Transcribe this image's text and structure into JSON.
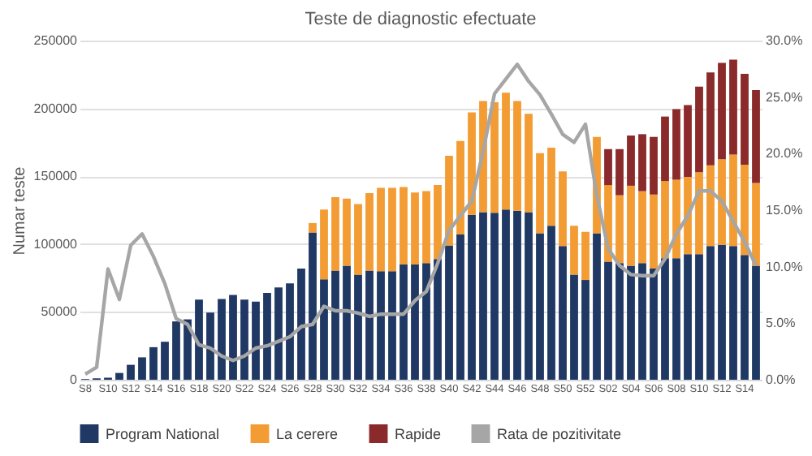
{
  "chart_data": {
    "type": "bar",
    "title": "Teste de diagnostic efectuate",
    "ylabel": "Numar teste",
    "categories": [
      "S8",
      null,
      "S10",
      null,
      "S12",
      null,
      "S14",
      null,
      "S16",
      null,
      "S18",
      null,
      "S20",
      null,
      "S22",
      null,
      "S24",
      null,
      "S26",
      null,
      "S28",
      null,
      "S30",
      null,
      "S32",
      null,
      "S34",
      null,
      "S36",
      null,
      "S38",
      null,
      "S40",
      null,
      "S42",
      null,
      "S44",
      null,
      "S46",
      null,
      "S48",
      null,
      "S50",
      null,
      "S52",
      null,
      "S02",
      null,
      "S04",
      null,
      "S06",
      null,
      "S08",
      null,
      "S10",
      null,
      "S12",
      null,
      "S14",
      null
    ],
    "stacked": true,
    "series": [
      {
        "name": "Program National",
        "color": "#203864",
        "values": [
          500,
          1000,
          1500,
          5000,
          11000,
          16500,
          24000,
          28000,
          43000,
          44500,
          59000,
          49500,
          59500,
          62500,
          59000,
          57500,
          64000,
          68000,
          71000,
          82000,
          108500,
          74000,
          80500,
          84000,
          77500,
          80500,
          80000,
          80000,
          85000,
          85000,
          86000,
          89000,
          99000,
          107000,
          121500,
          123500,
          123000,
          125500,
          124500,
          123500,
          108000,
          113500,
          98500,
          77500,
          73500,
          108000,
          87000,
          86000,
          84000,
          86000,
          82000,
          89500,
          89500,
          92500,
          92500,
          98500,
          99500,
          98500,
          92000,
          84000
        ]
      },
      {
        "name": "La cerere",
        "color": "#f39c33",
        "values": [
          null,
          null,
          null,
          null,
          null,
          null,
          null,
          null,
          null,
          null,
          null,
          null,
          null,
          null,
          null,
          null,
          null,
          null,
          null,
          null,
          7000,
          51500,
          54000,
          49500,
          52000,
          57000,
          61500,
          61500,
          57000,
          53000,
          53000,
          54500,
          66000,
          69000,
          75500,
          82000,
          81500,
          86000,
          81000,
          72500,
          59000,
          57500,
          55000,
          36000,
          35500,
          71000,
          56500,
          50000,
          59000,
          53000,
          54500,
          57000,
          58000,
          57000,
          60500,
          59500,
          63000,
          67500,
          66500,
          61000
        ]
      },
      {
        "name": "Rapide",
        "color": "#8b2a2a",
        "values": [
          null,
          null,
          null,
          null,
          null,
          null,
          null,
          null,
          null,
          null,
          null,
          null,
          null,
          null,
          null,
          null,
          null,
          null,
          null,
          null,
          null,
          null,
          null,
          null,
          null,
          null,
          null,
          null,
          null,
          null,
          null,
          null,
          null,
          null,
          null,
          null,
          null,
          null,
          null,
          null,
          null,
          null,
          null,
          null,
          null,
          null,
          26500,
          34000,
          37000,
          42000,
          42500,
          47500,
          52000,
          53000,
          63000,
          68500,
          71000,
          70000,
          67000,
          68500
        ]
      },
      {
        "name": "Rata de pozitivitate",
        "color": "#a6a6a6",
        "type": "line",
        "axis": "y2",
        "values": [
          0.5,
          1.1,
          9.8,
          7.1,
          11.9,
          12.9,
          10.9,
          8.5,
          5.4,
          4.9,
          3.1,
          2.8,
          2.1,
          1.7,
          2.1,
          2.8,
          3.0,
          3.4,
          3.8,
          4.7,
          4.9,
          6.5,
          6.1,
          6.1,
          5.9,
          5.6,
          5.8,
          5.8,
          5.8,
          7.0,
          7.8,
          10.3,
          13.2,
          14.5,
          15.8,
          20.2,
          25.3,
          26.6,
          27.9,
          26.4,
          25.2,
          23.5,
          21.7,
          21.0,
          22.6,
          16.3,
          11.6,
          10.1,
          9.3,
          9.2,
          9.2,
          10.7,
          12.9,
          14.5,
          16.7,
          16.7,
          15.8,
          14.0,
          12.2,
          10.1
        ]
      }
    ],
    "ylim": [
      0,
      250000
    ],
    "yticks": [
      0,
      50000,
      100000,
      150000,
      200000,
      250000
    ],
    "y2lim": [
      0,
      30
    ],
    "y2ticks": [
      {
        "value": 0,
        "label": "0.0%"
      },
      {
        "value": 5,
        "label": "5.0%"
      },
      {
        "value": 10,
        "label": "10.0%"
      },
      {
        "value": 15,
        "label": "15.0%"
      },
      {
        "value": 20,
        "label": "20.0%"
      },
      {
        "value": 25,
        "label": "25.0%"
      },
      {
        "value": 30,
        "label": "30.0%"
      }
    ],
    "grid": "y",
    "legend": "bottom"
  }
}
